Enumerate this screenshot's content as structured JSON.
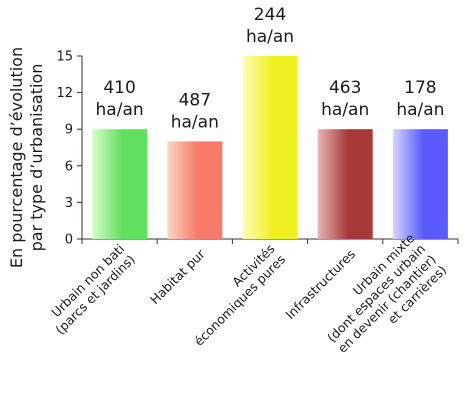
{
  "chart_data": {
    "type": "bar",
    "ylabel": [
      "En pourcentage d’évolution",
      "par type d’urbanisation"
    ],
    "ylim": [
      0,
      15
    ],
    "yticks": [
      0,
      3,
      6,
      9,
      12,
      15
    ],
    "grid": false,
    "categories": [
      [
        "Urbain non bati",
        "(parcs et jardins)"
      ],
      [
        "Habitat pur"
      ],
      [
        "Activités",
        "économiques pures"
      ],
      [
        "Infrastructures"
      ],
      [
        "Urbain mixte",
        "(dont espaces urbain",
        "en devenir (chantier)",
        "et carrières)"
      ]
    ],
    "values": [
      9,
      8,
      15,
      9,
      9
    ],
    "data_labels": [
      [
        "410",
        "ha/an"
      ],
      [
        "487",
        "ha/an"
      ],
      [
        "244",
        "ha/an"
      ],
      [
        "463",
        "ha/an"
      ],
      [
        "178",
        "ha/an"
      ]
    ],
    "colors": [
      [
        "#d6ffc8",
        "#5fe05f"
      ],
      [
        "#ffd3c4",
        "#f87a68"
      ],
      [
        "#ffffb8",
        "#f0f020"
      ],
      [
        "#e8b5b5",
        "#a83838"
      ],
      [
        "#d6d6ff",
        "#5a5aff"
      ]
    ]
  }
}
